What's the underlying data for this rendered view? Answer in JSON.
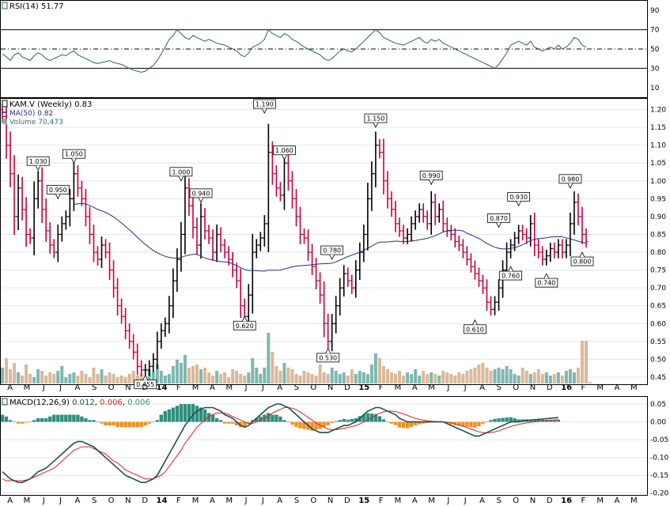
{
  "colors": {
    "up": "#000000",
    "down": "#c8003c",
    "ma": "#2a2a8a",
    "rsi": "#2f5f6f",
    "vol_up": "#7fb7b0",
    "vol_down": "#d9b99a",
    "macd_line": "#1f4f4f",
    "macd_signal": "#e02020",
    "hist_pos": "#2e8f7f",
    "hist_neg": "#f09020",
    "grid": "#e6e6e6"
  },
  "rsi_panel": {
    "label": "RSI(14)",
    "value": "51.77",
    "ticks": [
      "90",
      "70",
      "50",
      "30",
      "10"
    ],
    "tick_values": [
      90,
      70,
      50,
      30,
      10
    ]
  },
  "price_panel": {
    "symbol": "KAM.V (Weekly)",
    "last": "0.83",
    "ma_label": "MA(50)",
    "ma_value": "0.82",
    "volume_label": "Volume",
    "volume_value": "70,473",
    "ticks": [
      "1.20",
      "1.15",
      "1.10",
      "1.05",
      "1.00",
      "0.95",
      "0.90",
      "0.85",
      "0.80",
      "0.75",
      "0.70",
      "0.65",
      "0.60",
      "0.55",
      "0.50",
      "0.45"
    ],
    "tick_values": [
      1.2,
      1.15,
      1.1,
      1.05,
      1.0,
      0.95,
      0.9,
      0.85,
      0.8,
      0.75,
      0.7,
      0.65,
      0.6,
      0.55,
      0.5,
      0.45
    ]
  },
  "macd_panel": {
    "label": "MACD(12,26,9)",
    "v1": "0.012",
    "v2": "0.006",
    "v3": "0.006",
    "ticks": [
      "0.05",
      "0.00",
      "-0.05",
      "-0.10",
      "-0.15",
      "-0.20"
    ],
    "tick_values": [
      0.05,
      0.0,
      -0.05,
      -0.1,
      -0.15,
      -0.2
    ]
  },
  "x_axis": {
    "labels": [
      "A",
      "M",
      "J",
      "J",
      "A",
      "S",
      "O",
      "N",
      "D",
      "14",
      "F",
      "M",
      "A",
      "M",
      "J",
      "J",
      "A",
      "S",
      "O",
      "N",
      "D",
      "15",
      "F",
      "M",
      "A",
      "M",
      "J",
      "J",
      "A",
      "S",
      "O",
      "N",
      "D",
      "16",
      "F",
      "M",
      "A",
      "M"
    ],
    "bold": [
      "14",
      "15",
      "16"
    ]
  },
  "chart_data": {
    "type": "ohlc",
    "title": "KAM.V (Weekly)",
    "price_ylim": [
      0.43,
      1.23
    ],
    "rsi_ylim": [
      0,
      100
    ],
    "macd_ylim": [
      -0.205,
      0.07
    ],
    "callouts": [
      {
        "week": 9,
        "price": 1.03,
        "label": "1.030"
      },
      {
        "week": 14,
        "price": 0.95,
        "label": "0.950"
      },
      {
        "week": 18,
        "price": 1.05,
        "label": "1.050"
      },
      {
        "week": 36,
        "price": 0.455,
        "label": "0.455",
        "below": true
      },
      {
        "week": 45,
        "price": 1.0,
        "label": "1.000"
      },
      {
        "week": 50,
        "price": 0.94,
        "label": "0.940"
      },
      {
        "week": 61,
        "price": 0.62,
        "label": "0.620",
        "below": true
      },
      {
        "week": 66,
        "price": 1.19,
        "label": "1.190"
      },
      {
        "week": 71,
        "price": 1.06,
        "label": "1.060"
      },
      {
        "week": 83,
        "price": 0.78,
        "label": "0.780"
      },
      {
        "week": 82,
        "price": 0.53,
        "label": "0.530",
        "below": true
      },
      {
        "week": 94,
        "price": 1.15,
        "label": "1.150"
      },
      {
        "week": 108,
        "price": 0.99,
        "label": "0.990"
      },
      {
        "week": 119,
        "price": 0.61,
        "label": "0.610",
        "below": true
      },
      {
        "week": 125,
        "price": 0.87,
        "label": "0.870"
      },
      {
        "week": 130,
        "price": 0.93,
        "label": "0.930"
      },
      {
        "week": 128,
        "price": 0.76,
        "label": "0.760",
        "below": true
      },
      {
        "week": 137,
        "price": 0.74,
        "label": "0.740",
        "below": true
      },
      {
        "week": 143,
        "price": 0.98,
        "label": "0.980"
      },
      {
        "week": 146,
        "price": 0.8,
        "label": "0.800",
        "below": true
      }
    ],
    "closes": [
      1.18,
      1.1,
      1.02,
      0.9,
      0.98,
      0.92,
      0.85,
      0.84,
      0.95,
      1.0,
      0.92,
      0.86,
      0.82,
      0.8,
      0.85,
      0.88,
      0.9,
      0.95,
      1.02,
      0.98,
      0.95,
      0.9,
      0.85,
      0.8,
      0.78,
      0.82,
      0.8,
      0.75,
      0.7,
      0.65,
      0.62,
      0.58,
      0.55,
      0.52,
      0.48,
      0.47,
      0.47,
      0.48,
      0.5,
      0.55,
      0.58,
      0.6,
      0.65,
      0.72,
      0.78,
      0.85,
      0.98,
      0.93,
      0.87,
      0.82,
      0.9,
      0.86,
      0.84,
      0.8,
      0.85,
      0.82,
      0.8,
      0.78,
      0.75,
      0.72,
      0.65,
      0.62,
      0.68,
      0.8,
      0.82,
      0.84,
      0.88,
      1.08,
      1.02,
      0.98,
      0.96,
      1.05,
      1.0,
      0.95,
      0.9,
      0.85,
      0.84,
      0.8,
      0.76,
      0.72,
      0.68,
      0.6,
      0.55,
      0.6,
      0.65,
      0.7,
      0.74,
      0.72,
      0.7,
      0.75,
      0.8,
      0.85,
      0.95,
      1.02,
      1.1,
      1.08,
      1.0,
      0.95,
      0.92,
      0.88,
      0.86,
      0.84,
      0.85,
      0.88,
      0.9,
      0.92,
      0.9,
      0.88,
      0.94,
      0.9,
      0.92,
      0.88,
      0.86,
      0.85,
      0.83,
      0.82,
      0.8,
      0.78,
      0.76,
      0.74,
      0.72,
      0.7,
      0.66,
      0.64,
      0.66,
      0.7,
      0.75,
      0.8,
      0.82,
      0.84,
      0.86,
      0.85,
      0.84,
      0.88,
      0.82,
      0.8,
      0.78,
      0.79,
      0.81,
      0.8,
      0.82,
      0.8,
      0.82,
      0.88,
      0.94,
      0.9,
      0.85,
      0.83
    ],
    "volume": [
      1.0,
      1.6,
      0.9,
      1.3,
      0.7,
      0.5,
      1.2,
      0.6,
      0.4,
      0.9,
      0.8,
      0.5,
      0.7,
      0.6,
      0.8,
      1.1,
      0.4,
      0.6,
      0.7,
      0.5,
      0.8,
      0.6,
      0.4,
      1.0,
      0.6,
      0.9,
      0.5,
      0.7,
      0.6,
      0.4,
      0.5,
      0.4,
      0.6,
      0.8,
      0.5,
      0.6,
      0.4,
      0.9,
      0.7,
      1.2,
      0.8,
      0.5,
      0.6,
      1.1,
      1.5,
      1.3,
      1.8,
      1.0,
      1.1,
      1.2,
      0.9,
      1.0,
      0.7,
      0.5,
      0.8,
      0.6,
      0.7,
      0.4,
      0.9,
      0.8,
      0.6,
      0.5,
      0.7,
      1.6,
      1.0,
      0.6,
      1.0,
      3.2,
      2.0,
      1.1,
      0.8,
      1.3,
      1.0,
      0.9,
      0.6,
      0.5,
      0.8,
      0.7,
      0.6,
      0.5,
      1.2,
      0.7,
      0.6,
      1.0,
      0.8,
      0.6,
      0.7,
      0.5,
      0.9,
      0.6,
      0.8,
      0.7,
      0.6,
      1.2,
      1.9,
      1.6,
      1.1,
      0.9,
      0.7,
      0.6,
      0.8,
      0.5,
      0.7,
      0.6,
      0.9,
      0.5,
      0.8,
      0.6,
      0.7,
      0.6,
      0.5,
      0.8,
      0.7,
      0.6,
      0.5,
      0.7,
      0.6,
      0.8,
      0.9,
      1.0,
      1.2,
      1.3,
      1.0,
      0.8,
      0.9,
      1.0,
      0.9,
      1.1,
      0.9,
      0.6,
      0.5,
      1.0,
      0.8,
      0.6,
      0.7,
      0.9,
      0.6,
      0.7,
      0.5,
      0.6,
      0.7,
      0.5,
      0.8,
      0.9,
      0.7,
      1.0,
      2.7,
      2.7,
      0.1
    ],
    "rsi": [
      45,
      42,
      38,
      44,
      46,
      42,
      40,
      38,
      43,
      46,
      44,
      40,
      38,
      40,
      42,
      44,
      43,
      46,
      48,
      44,
      42,
      40,
      38,
      36,
      35,
      36,
      37,
      38,
      36,
      35,
      34,
      32,
      30,
      28,
      27,
      26,
      27,
      30,
      33,
      38,
      45,
      52,
      60,
      64,
      70,
      66,
      62,
      60,
      64,
      62,
      60,
      58,
      60,
      58,
      56,
      55,
      54,
      52,
      50,
      48,
      44,
      42,
      46,
      52,
      54,
      56,
      60,
      70,
      66,
      64,
      62,
      66,
      64,
      60,
      58,
      55,
      52,
      50,
      48,
      46,
      44,
      40,
      38,
      40,
      44,
      48,
      50,
      48,
      47,
      50,
      54,
      58,
      62,
      66,
      70,
      67,
      62,
      60,
      58,
      56,
      55,
      54,
      56,
      58,
      60,
      62,
      58,
      56,
      60,
      58,
      60,
      56,
      54,
      52,
      50,
      48,
      46,
      44,
      42,
      40,
      38,
      36,
      34,
      32,
      30,
      34,
      40,
      46,
      54,
      56,
      58,
      56,
      54,
      58,
      52,
      50,
      48,
      50,
      52,
      50,
      54,
      50,
      52,
      56,
      62,
      60,
      54,
      51.77
    ],
    "macd": [
      -0.14,
      -0.15,
      -0.16,
      -0.165,
      -0.17,
      -0.17,
      -0.165,
      -0.16,
      -0.15,
      -0.14,
      -0.135,
      -0.13,
      -0.12,
      -0.11,
      -0.1,
      -0.09,
      -0.08,
      -0.07,
      -0.06,
      -0.055,
      -0.055,
      -0.06,
      -0.065,
      -0.07,
      -0.08,
      -0.09,
      -0.1,
      -0.11,
      -0.12,
      -0.13,
      -0.14,
      -0.15,
      -0.155,
      -0.16,
      -0.165,
      -0.17,
      -0.17,
      -0.165,
      -0.16,
      -0.15,
      -0.13,
      -0.11,
      -0.09,
      -0.07,
      -0.05,
      -0.03,
      -0.01,
      0.005,
      0.02,
      0.03,
      0.035,
      0.04,
      0.04,
      0.04,
      0.035,
      0.03,
      0.02,
      0.015,
      0.01,
      0.0,
      -0.01,
      -0.015,
      -0.01,
      0.0,
      0.01,
      0.02,
      0.03,
      0.04,
      0.045,
      0.05,
      0.05,
      0.045,
      0.04,
      0.03,
      0.02,
      0.01,
      0.0,
      -0.01,
      -0.02,
      -0.025,
      -0.03,
      -0.03,
      -0.03,
      -0.025,
      -0.02,
      -0.015,
      -0.01,
      -0.01,
      -0.005,
      0.0,
      0.01,
      0.02,
      0.03,
      0.035,
      0.04,
      0.04,
      0.035,
      0.03,
      0.025,
      0.02,
      0.01,
      0.005,
      0.0,
      0.0,
      0.0,
      0.0,
      0.0,
      0.0,
      0.0,
      0.0,
      0.0,
      0.0,
      -0.005,
      -0.01,
      -0.015,
      -0.02,
      -0.025,
      -0.03,
      -0.035,
      -0.04,
      -0.04,
      -0.035,
      -0.03,
      -0.025,
      -0.02,
      -0.015,
      -0.01,
      -0.005,
      0.0,
      0.0,
      0.0,
      0.002,
      0.004,
      0.005,
      0.006,
      0.007,
      0.008,
      0.009,
      0.01,
      0.011,
      0.012
    ],
    "signal": [
      -0.16,
      -0.165,
      -0.165,
      -0.165,
      -0.165,
      -0.165,
      -0.163,
      -0.16,
      -0.155,
      -0.15,
      -0.145,
      -0.14,
      -0.135,
      -0.13,
      -0.12,
      -0.11,
      -0.1,
      -0.09,
      -0.08,
      -0.075,
      -0.07,
      -0.07,
      -0.07,
      -0.075,
      -0.08,
      -0.085,
      -0.09,
      -0.1,
      -0.11,
      -0.115,
      -0.125,
      -0.135,
      -0.14,
      -0.145,
      -0.15,
      -0.155,
      -0.16,
      -0.16,
      -0.16,
      -0.155,
      -0.15,
      -0.14,
      -0.125,
      -0.11,
      -0.095,
      -0.08,
      -0.06,
      -0.045,
      -0.03,
      -0.015,
      -0.005,
      0.005,
      0.015,
      0.02,
      0.025,
      0.025,
      0.025,
      0.02,
      0.015,
      0.01,
      0.005,
      0.0,
      -0.005,
      -0.005,
      0.0,
      0.005,
      0.01,
      0.015,
      0.025,
      0.03,
      0.035,
      0.04,
      0.04,
      0.038,
      0.034,
      0.028,
      0.02,
      0.012,
      0.005,
      -0.003,
      -0.01,
      -0.015,
      -0.02,
      -0.022,
      -0.022,
      -0.02,
      -0.018,
      -0.016,
      -0.013,
      -0.01,
      -0.006,
      0.0,
      0.006,
      0.012,
      0.018,
      0.024,
      0.028,
      0.03,
      0.03,
      0.029,
      0.026,
      0.022,
      0.018,
      0.014,
      0.01,
      0.007,
      0.005,
      0.003,
      0.002,
      0.001,
      0.0,
      0.0,
      -0.001,
      -0.003,
      -0.006,
      -0.009,
      -0.012,
      -0.016,
      -0.02,
      -0.024,
      -0.028,
      -0.03,
      -0.031,
      -0.03,
      -0.028,
      -0.025,
      -0.021,
      -0.017,
      -0.013,
      -0.01,
      -0.007,
      -0.005,
      -0.003,
      -0.001,
      0.0,
      0.001,
      0.002,
      0.003,
      0.004,
      0.005,
      0.006
    ]
  }
}
